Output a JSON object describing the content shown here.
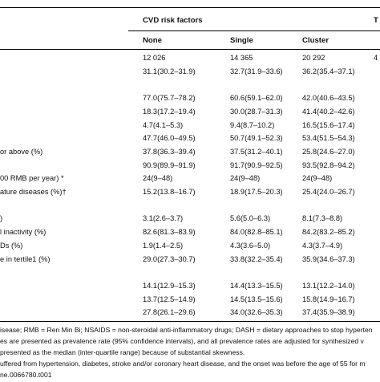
{
  "table": {
    "group_header": "CVD risk factors",
    "right_edge_header": "T",
    "columns": [
      "None",
      "Single",
      "Cluster"
    ],
    "right_edge_partial": "4",
    "rows": [
      {
        "label": "",
        "values": [
          "12 026",
          "14 365",
          "20 292"
        ]
      },
      {
        "label": "",
        "values": [
          "31.1(30.2–31.9)",
          "32.7(31.9–33.6)",
          "36.2(35.4–37.1)"
        ]
      },
      {
        "label": "",
        "values": [
          "",
          "",
          ""
        ]
      },
      {
        "label": "",
        "values": [
          "77.0(75.7–78.2)",
          "60.6(59.1–62.0)",
          "42.0(40.6–43.5)"
        ]
      },
      {
        "label": "",
        "values": [
          "18.3(17.2–19.4)",
          "30.0(28.7–31.3)",
          "41.4(40.2–42.6)"
        ]
      },
      {
        "label": "",
        "values": [
          "4.7(4.1–5.3)",
          "9.4(8.7–10.2)",
          "16.5(15.6–17.4)"
        ]
      },
      {
        "label": "",
        "values": [
          "47.7(46.0–49.5)",
          "50.7(49.1–52.3)",
          "53.4(51.5–54.3)"
        ]
      },
      {
        "label": "or above (%)",
        "values": [
          "37.8(36.3–39.4)",
          "37.5(31.2–40.1)",
          "25.8(24.6–27.0)"
        ]
      },
      {
        "label": "",
        "values": [
          "90.9(89.9–91.9)",
          "91.7(90.9–92.5)",
          "93.5(92.8–94.2)"
        ]
      },
      {
        "label": "00 RMB per year) *",
        "values": [
          "24(9–48)",
          "24(9–48)",
          "24(9–48)"
        ]
      },
      {
        "label": "ature diseases (%)†",
        "values": [
          "15.2(13.8–16.7)",
          "18.9(17.5–20.3)",
          "25.4(24.0–26.7)"
        ]
      },
      {
        "label": "",
        "values": [
          "",
          "",
          ""
        ]
      },
      {
        "label": ")",
        "values": [
          "3.1(2.6–3.7)",
          "5.6(5.0–6.3)",
          "8.1(7.3–8.8)"
        ]
      },
      {
        "label": "l inactivity (%)",
        "values": [
          "82.6(81.3–83.9)",
          "84.0(82.8–85.1)",
          "84.2(83.2–85.2)"
        ]
      },
      {
        "label": "Ds (%)",
        "values": [
          "1.9(1.4–2.5)",
          "4.3(3.6–5.0)",
          "4.3(3.7–4.9)"
        ]
      },
      {
        "label": "e in tertile1 (%)",
        "values": [
          "29.0(27.3–30.7)",
          "33.8(32.2–35.4)",
          "35.9(34.6–37.3)"
        ]
      },
      {
        "label": "",
        "values": [
          "",
          "",
          ""
        ]
      },
      {
        "label": "",
        "values": [
          "14.1(12.9–15.3)",
          "14.4(13.3–15.5)",
          "13.1(12.2–14.0)"
        ]
      },
      {
        "label": "",
        "values": [
          "13.7(12.5–14.9)",
          "14.5(13.5–15.6)",
          "15.8(14.9–16.7)"
        ]
      },
      {
        "label": "",
        "values": [
          "27.8(26.1–29.6)",
          "34.0(32.6–35.3)",
          "37.4(35.9–38.9)"
        ]
      }
    ]
  },
  "footnotes": [
    "isease; RMB = Ren Min Bi; NSAIDS = non-steroidal anti-inflammatory drugs; DASH = dietary approaches to stop hyperten",
    "es are presented as prevalence rate (95% confidence intervals), and all prevalence rates are adjusted for synthesized v",
    "presented as the median (inter-quartile range) because of substantial skewness.",
    "uffered from hypertension, diabetes, stroke and/or coronary heart disease, and the onset was before the age of 55 for m",
    "ne.0066780.t001"
  ]
}
